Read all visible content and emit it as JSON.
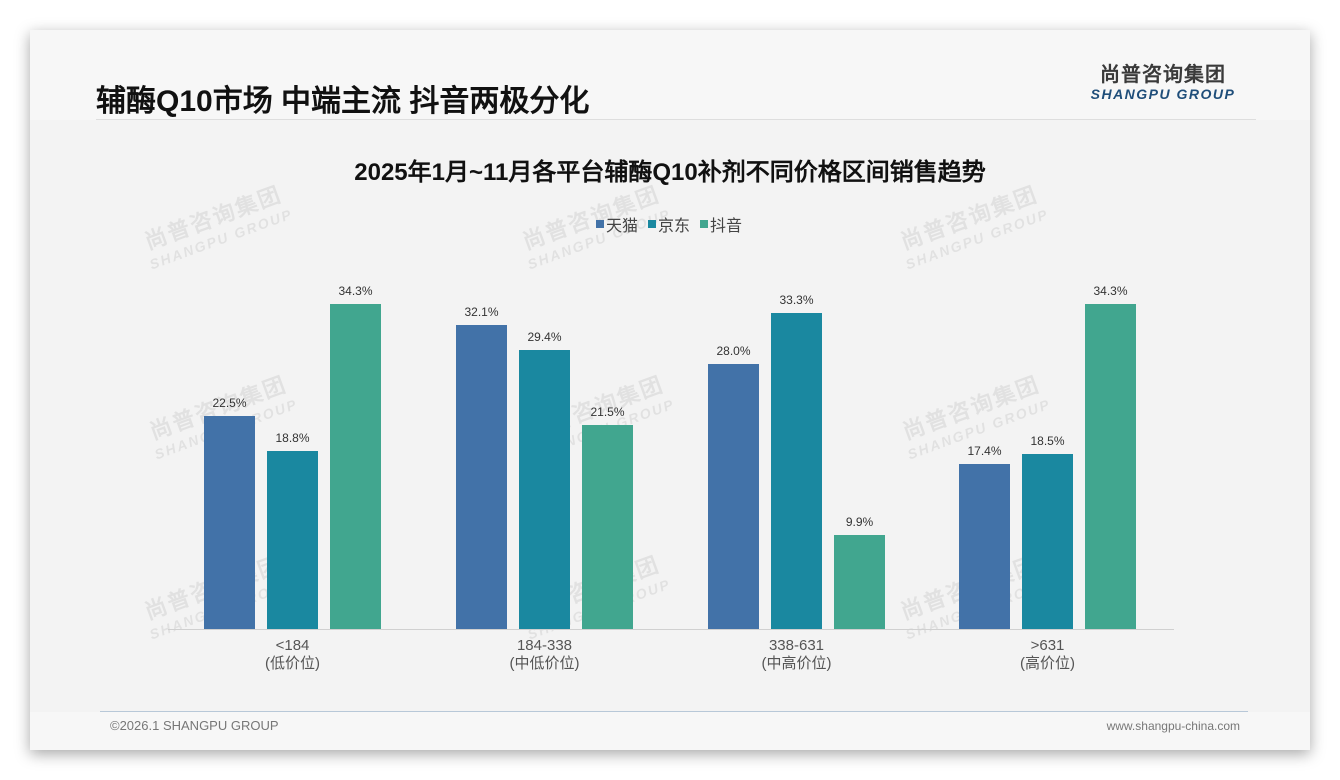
{
  "header": {
    "title": "辅酶Q10市场 中端主流 抖音两极分化",
    "logo_cn": "尚普咨询集团",
    "logo_en": "SHANGPU GROUP"
  },
  "watermark": {
    "cn": "尚普咨询集团",
    "en": "SHANGPU GROUP"
  },
  "footer": {
    "copyright": "©2026.1 SHANGPU GROUP",
    "website": "www.shangpu-china.com"
  },
  "colors": {
    "tmall": "#4272a8",
    "jd": "#1a88a0",
    "douyin": "#41a68f"
  },
  "chart_data": {
    "type": "bar",
    "title": "2025年1月~11月各平台辅酶Q10补剂不同价格区间销售趋势",
    "xlabel": "",
    "ylabel": "",
    "categories": [
      "<184\n(低价位)",
      "184-338\n(中低价位)",
      "338-631\n(中高价位)",
      ">631\n(高价位)"
    ],
    "category_ranges": [
      "<184",
      "184-338",
      "338-631",
      ">631"
    ],
    "category_tiers": [
      "(低价位)",
      "(中低价位)",
      "(中高价位)",
      "(高价位)"
    ],
    "series": [
      {
        "name": "天猫",
        "color": "#4272a8",
        "values": [
          22.5,
          32.1,
          28.0,
          17.4
        ],
        "labels": [
          "22.5%",
          "32.1%",
          "28.0%",
          "17.4%"
        ]
      },
      {
        "name": "京东",
        "color": "#1a88a0",
        "values": [
          18.8,
          29.4,
          33.3,
          18.5
        ],
        "labels": [
          "18.8%",
          "29.4%",
          "33.3%",
          "18.5%"
        ]
      },
      {
        "name": "抖音",
        "color": "#41a68f",
        "values": [
          34.3,
          21.5,
          9.9,
          34.3
        ],
        "labels": [
          "34.3%",
          "21.5%",
          "9.9%",
          "34.3%"
        ]
      }
    ],
    "legend": [
      "天猫",
      "京东",
      "抖音"
    ],
    "legend_position": "top",
    "grid": false,
    "y_axis_visible": false,
    "value_format": "percent, 1 decimal",
    "ylim": [
      0,
      36
    ]
  }
}
